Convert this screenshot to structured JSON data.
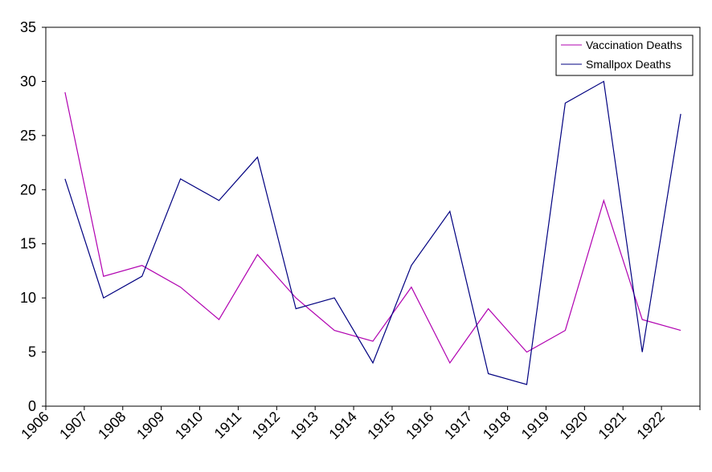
{
  "chart_data": {
    "type": "line",
    "categories": [
      "1906",
      "1907",
      "1908",
      "1909",
      "1910",
      "1911",
      "1912",
      "1913",
      "1914",
      "1915",
      "1916",
      "1917",
      "1918",
      "1919",
      "1920",
      "1921",
      "1922"
    ],
    "series": [
      {
        "name": "Vaccination Deaths",
        "color": "#b000b0",
        "values": [
          29,
          12,
          13,
          11,
          8,
          14,
          10,
          7,
          6,
          11,
          4,
          9,
          5,
          7,
          19,
          8,
          7
        ]
      },
      {
        "name": "Smallpox Deaths",
        "color": "#000080",
        "values": [
          21,
          10,
          12,
          21,
          19,
          23,
          9,
          10,
          4,
          13,
          18,
          3,
          2,
          28,
          30,
          5,
          27
        ]
      }
    ],
    "yticks": [
      "0",
      "5",
      "10",
      "15",
      "20",
      "25",
      "30",
      "35"
    ],
    "ylim": [
      0,
      35
    ],
    "grid": false,
    "legend_position": "top-right",
    "xlabel": "",
    "ylabel": "",
    "title": ""
  }
}
